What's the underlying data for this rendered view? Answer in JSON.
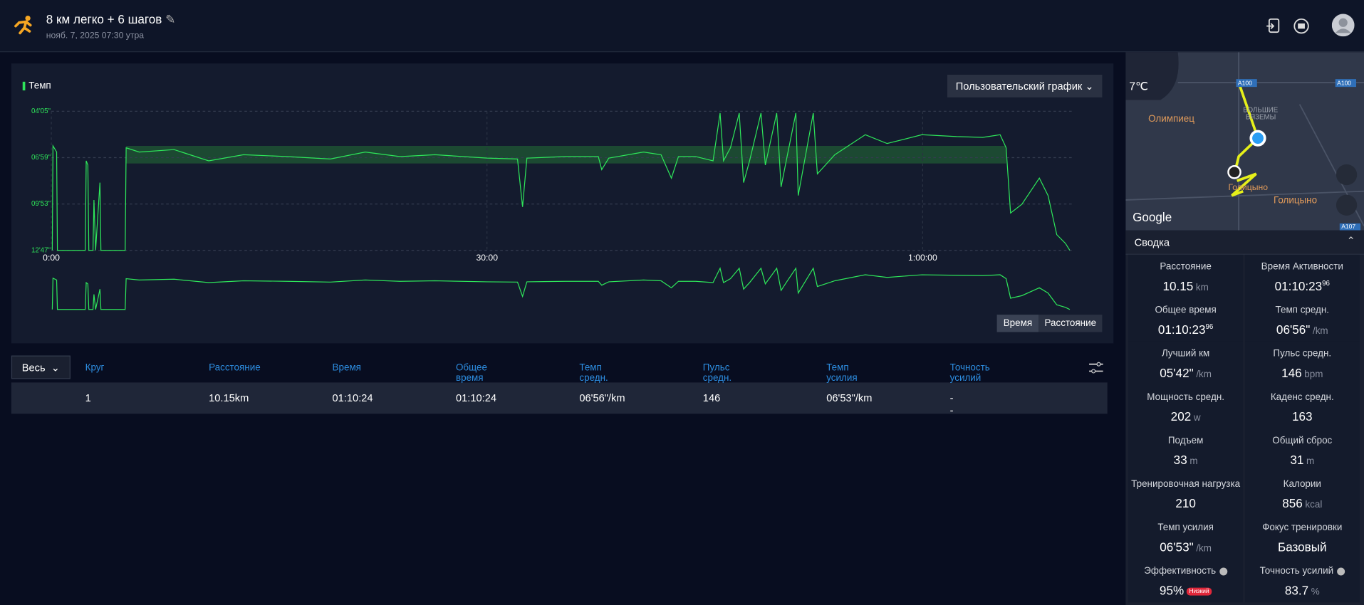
{
  "header": {
    "title": "8 км легко + 6 шагов",
    "date": "нояб. 7, 2025 07:30 утра"
  },
  "pace_chart": {
    "type": "line",
    "legend": "Темп",
    "button": "Пользовательский график",
    "color": "#2ee65a",
    "xlim": [
      0,
      4223
    ],
    "ylim": [
      767,
      245
    ],
    "xticks": [
      {
        "value": 0,
        "label": "0:00"
      },
      {
        "value": 1800,
        "label": "30:00"
      },
      {
        "value": 3600,
        "label": "1:00:00"
      }
    ],
    "yticks": [
      {
        "value": 245,
        "label": "04'05\""
      },
      {
        "value": 419,
        "label": "06'59\""
      },
      {
        "value": 593,
        "label": "09'53\""
      },
      {
        "value": 767,
        "label": "12'47\""
      }
    ],
    "target_zone": [
      375,
      441
    ],
    "x": [
      4,
      7,
      22,
      25,
      140,
      144,
      151,
      155,
      172,
      176,
      183,
      201,
      205,
      305,
      309,
      363,
      507,
      650,
      794,
      974,
      1153,
      1297,
      1441,
      1585,
      1800,
      1926,
      1947,
      1965,
      2123,
      2260,
      2274,
      2303,
      2447,
      2519,
      2562,
      2591,
      2662,
      2734,
      2763,
      2777,
      2806,
      2842,
      2860,
      2885,
      2932,
      2950,
      2997,
      3015,
      3040,
      3076,
      3086,
      3112,
      3148,
      3165,
      3237,
      3363,
      3453,
      3597,
      3740,
      3848,
      3920,
      3945,
      3963,
      4010,
      4082,
      4118,
      4154,
      4190,
      4208
    ],
    "values": [
      767,
      375,
      398,
      767,
      767,
      431,
      447,
      767,
      767,
      578,
      767,
      513,
      767,
      767,
      382,
      398,
      389,
      431,
      408,
      415,
      424,
      398,
      415,
      408,
      421,
      424,
      604,
      421,
      415,
      415,
      464,
      421,
      398,
      408,
      496,
      415,
      415,
      431,
      252,
      431,
      382,
      252,
      513,
      431,
      252,
      447,
      252,
      529,
      415,
      252,
      561,
      431,
      252,
      480,
      408,
      333,
      366,
      333,
      340,
      343,
      333,
      382,
      627,
      594,
      496,
      561,
      708,
      741,
      767
    ],
    "toggle": [
      "Время",
      "Расстояние"
    ]
  },
  "laps": {
    "filter": "Весь",
    "columns": [
      "Круг",
      "Расстояние",
      "Время",
      "Общее время",
      "Темп средн.",
      "Пульс средн.",
      "Темп усилия",
      "Точность усилий"
    ],
    "rows": [
      [
        "1",
        "10.15km",
        "01:10:24",
        "01:10:24",
        "06'56\"/km",
        "146",
        "06'53\"/km",
        "--"
      ]
    ]
  },
  "map": {
    "temperature": "7℃",
    "places": [
      "Олимпиец",
      "БОЛЬШИЕ",
      "ВЯЗЕМЫ",
      "Голицыно",
      "Голицыно"
    ],
    "roads": [
      "A100",
      "A100",
      "A107"
    ],
    "brand": "Google"
  },
  "summary": {
    "title": "Сводка",
    "items": [
      {
        "label": "Расстояние",
        "value": "10.15",
        "unit": "km"
      },
      {
        "label": "Время Активности",
        "value": "01:10:23",
        "sup": "96"
      },
      {
        "label": "Общее время",
        "value": "01:10:23",
        "sup": "96"
      },
      {
        "label": "Темп средн.",
        "value": "06'56\"",
        "unit": "/km"
      },
      {
        "label": "Лучший км",
        "value": "05'42\"",
        "unit": "/km"
      },
      {
        "label": "Пульс средн.",
        "value": "146",
        "unit": "bpm"
      },
      {
        "label": "Мощность средн.",
        "value": "202",
        "unit": "w"
      },
      {
        "label": "Каденс средн.",
        "value": "163"
      },
      {
        "label": "Подъем",
        "value": "33",
        "unit": "m"
      },
      {
        "label": "Общий сброс",
        "value": "31",
        "unit": "m"
      },
      {
        "label": "Тренировочная нагрузка",
        "value": "210"
      },
      {
        "label": "Калории",
        "value": "856",
        "unit": "kcal"
      },
      {
        "label": "Темп усилия",
        "value": "06'53\"",
        "unit": "/km"
      },
      {
        "label": "Фокус тренировки",
        "value": "Базовый"
      },
      {
        "label": "Эффективность",
        "value": "95%",
        "badge": "Низкий",
        "info": true
      },
      {
        "label": "Точность усилий",
        "value": "83.7",
        "unit": "%",
        "info": true
      }
    ]
  }
}
